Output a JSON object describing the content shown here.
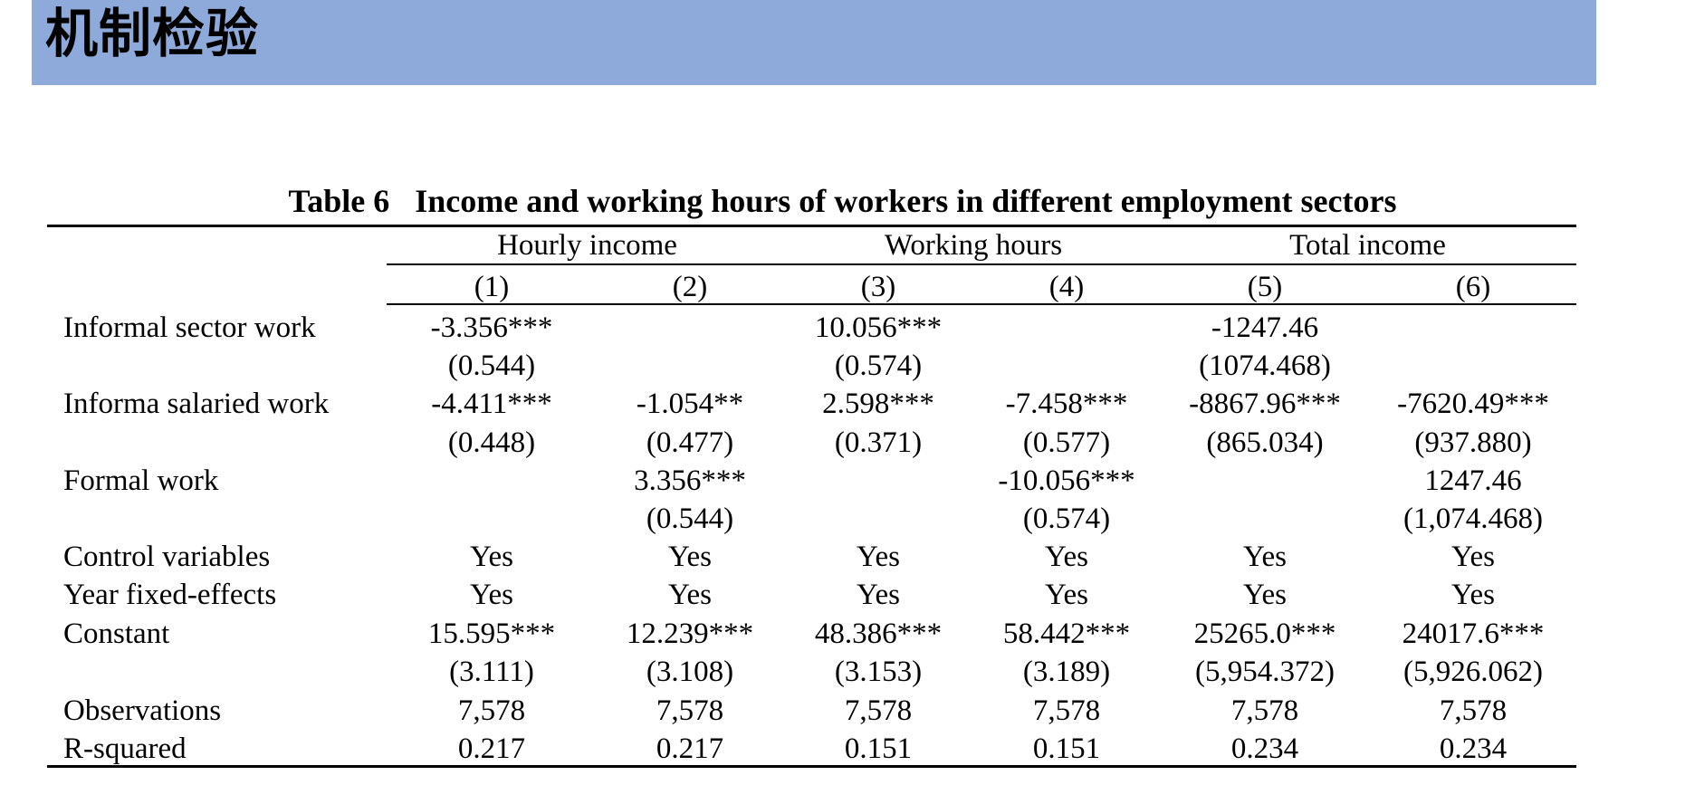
{
  "slide": {
    "title": "机制检验"
  },
  "table": {
    "number": "Table 6",
    "caption": "Income and working hours of workers in different employment sectors",
    "groups": [
      "Hourly income",
      "Working hours",
      "Total income"
    ],
    "columns": [
      "(1)",
      "(2)",
      "(3)",
      "(4)",
      "(5)",
      "(6)"
    ],
    "rows": [
      {
        "label": "Informal sector work",
        "values": [
          "-3.356***",
          "",
          "10.056***",
          "",
          "-1247.46",
          ""
        ]
      },
      {
        "label": "",
        "values": [
          "(0.544)",
          "",
          "(0.574)",
          "",
          "(1074.468)",
          ""
        ]
      },
      {
        "label": "Informa salaried work",
        "values": [
          "-4.411***",
          "-1.054**",
          "2.598***",
          "-7.458***",
          "-8867.96***",
          "-7620.49***"
        ]
      },
      {
        "label": "",
        "values": [
          "(0.448)",
          "(0.477)",
          "(0.371)",
          "(0.577)",
          "(865.034)",
          "(937.880)"
        ]
      },
      {
        "label": "Formal work",
        "values": [
          "",
          "3.356***",
          "",
          "-10.056***",
          "",
          "1247.46"
        ]
      },
      {
        "label": "",
        "values": [
          "",
          "(0.544)",
          "",
          "(0.574)",
          "",
          "(1,074.468)"
        ]
      },
      {
        "label": "Control variables",
        "values": [
          "Yes",
          "Yes",
          "Yes",
          "Yes",
          "Yes",
          "Yes"
        ]
      },
      {
        "label": "Year fixed-effects",
        "values": [
          "Yes",
          "Yes",
          "Yes",
          "Yes",
          "Yes",
          "Yes"
        ]
      },
      {
        "label": "Constant",
        "values": [
          "15.595***",
          "12.239***",
          "48.386***",
          "58.442***",
          "25265.0***",
          "24017.6***"
        ]
      },
      {
        "label": "",
        "values": [
          "(3.111)",
          "(3.108)",
          "(3.153)",
          "(3.189)",
          "(5,954.372)",
          "(5,926.062)"
        ]
      },
      {
        "label": "Observations",
        "values": [
          "7,578",
          "7,578",
          "7,578",
          "7,578",
          "7,578",
          "7,578"
        ]
      },
      {
        "label": "R-squared",
        "values": [
          "0.217",
          "0.217",
          "0.151",
          "0.151",
          "0.234",
          "0.234"
        ]
      }
    ]
  }
}
